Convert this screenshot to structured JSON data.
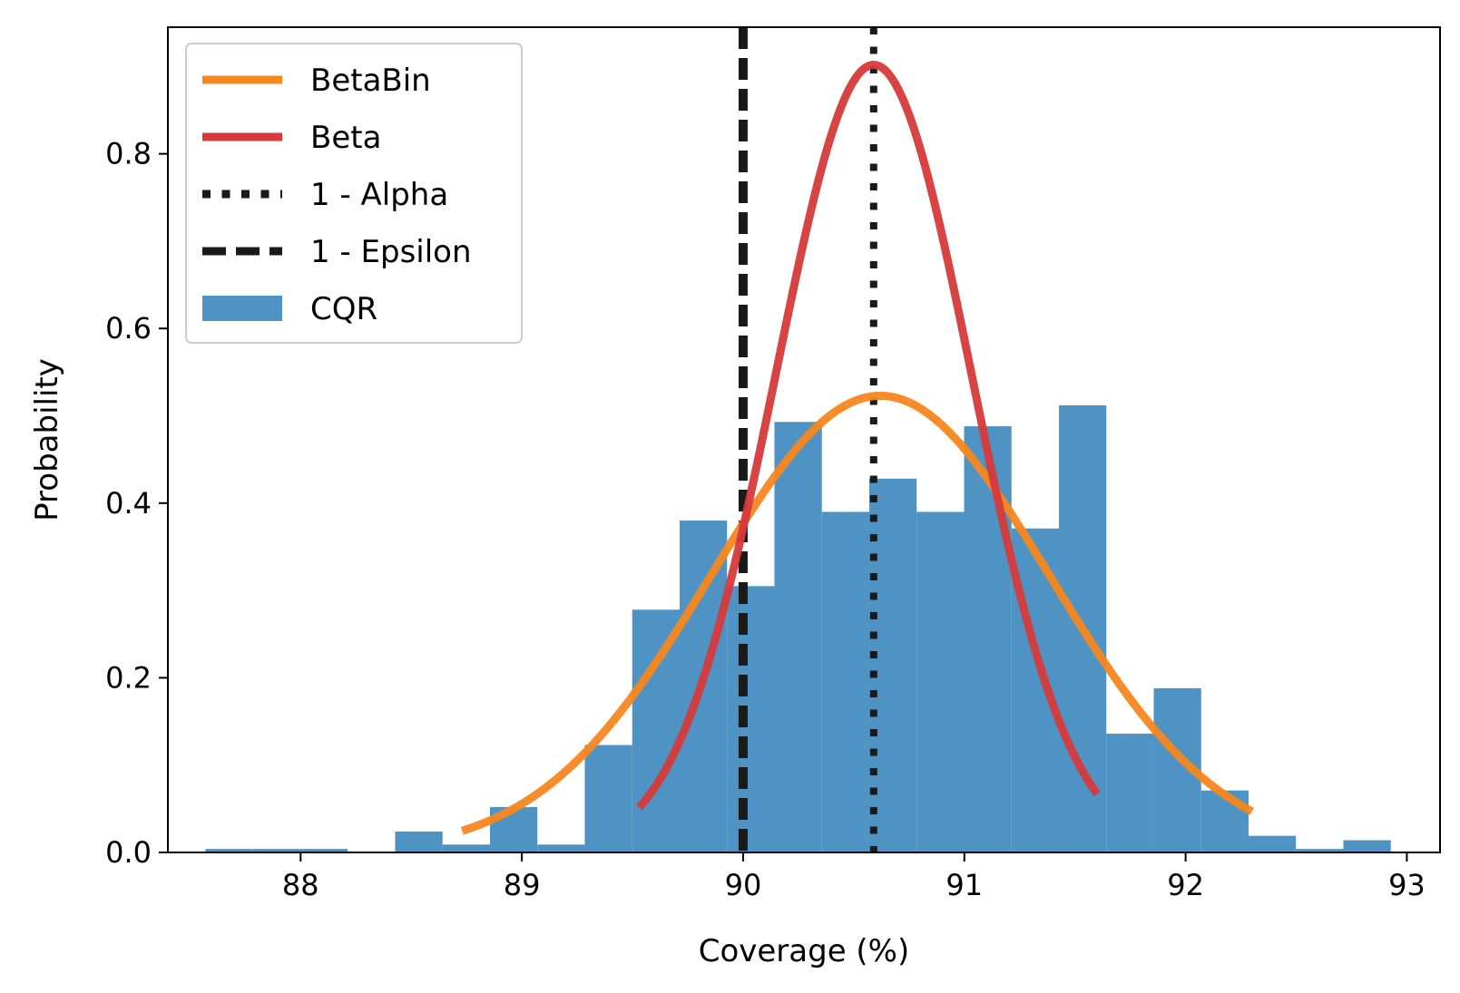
{
  "chart_data": {
    "type": "bar",
    "title": "",
    "xlabel": "Coverage (%)",
    "ylabel": "Probability",
    "xlim": [
      87.4,
      93.15
    ],
    "ylim": [
      0,
      0.945
    ],
    "xticks": [
      88,
      89,
      90,
      91,
      92,
      93
    ],
    "yticks": [
      0.0,
      0.2,
      0.4,
      0.6,
      0.8
    ],
    "xtick_labels": [
      "88",
      "89",
      "90",
      "91",
      "92",
      "93"
    ],
    "ytick_labels": [
      "0.0",
      "0.2",
      "0.4",
      "0.6",
      "0.8"
    ],
    "grid": false,
    "legend_position": "top-left",
    "histogram": {
      "name": "CQR",
      "color": "#4f93c4",
      "bin_start": 87.57,
      "bin_width": 0.2143,
      "values": [
        0.004,
        0.004,
        0.004,
        0.0,
        0.024,
        0.009,
        0.052,
        0.009,
        0.123,
        0.278,
        0.38,
        0.305,
        0.493,
        0.39,
        0.428,
        0.39,
        0.488,
        0.371,
        0.512,
        0.136,
        0.188,
        0.071,
        0.019,
        0.004,
        0.014
      ]
    },
    "curves": [
      {
        "name": "BetaBin",
        "color": "#f7871f",
        "mean": 90.62,
        "sd": 0.765,
        "peak": 0.523,
        "x_range": [
          88.73,
          92.3
        ]
      },
      {
        "name": "Beta",
        "color": "#d63a3a",
        "mean": 90.59,
        "sd": 0.443,
        "peak": 0.902,
        "x_range": [
          89.53,
          91.6
        ]
      }
    ],
    "vlines": [
      {
        "name": "1 - Alpha",
        "x": 90.59,
        "style": "dotted",
        "color": "#1a1a1a"
      },
      {
        "name": "1 - Epsilon",
        "x": 90.0,
        "style": "dashed",
        "color": "#1a1a1a"
      }
    ],
    "legend": [
      {
        "label": "BetaBin",
        "kind": "line",
        "color": "#f7871f",
        "style": "solid"
      },
      {
        "label": "Beta",
        "kind": "line",
        "color": "#d63a3a",
        "style": "solid"
      },
      {
        "label": "1 - Alpha",
        "kind": "line",
        "color": "#1a1a1a",
        "style": "dotted"
      },
      {
        "label": "1 - Epsilon",
        "kind": "line",
        "color": "#1a1a1a",
        "style": "dashed"
      },
      {
        "label": "CQR",
        "kind": "patch",
        "color": "#4f93c4",
        "style": "fill"
      }
    ]
  }
}
